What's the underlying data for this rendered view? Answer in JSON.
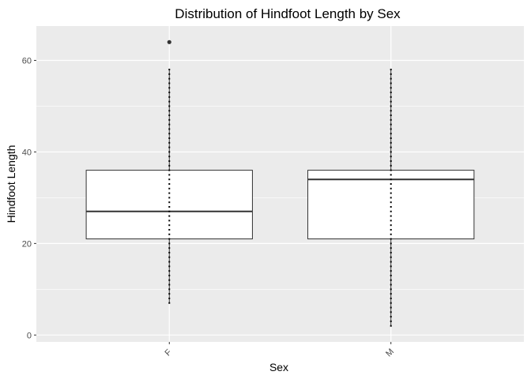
{
  "chart_data": {
    "type": "box",
    "title": "Distribution of Hindfoot Length by Sex",
    "xlabel": "Sex",
    "ylabel": "Hindfoot Length",
    "categories": [
      "F",
      "M"
    ],
    "ylim": [
      -1.5,
      67.5
    ],
    "yticks": [
      0,
      20,
      40,
      60
    ],
    "grid": true,
    "x_tick_rotation": -45,
    "series": [
      {
        "category": "F",
        "whisker_low": 7,
        "q1": 21,
        "median": 27,
        "q3": 36,
        "whisker_high": 58,
        "outliers": [
          64
        ]
      },
      {
        "category": "M",
        "whisker_low": 2,
        "q1": 21,
        "median": 34,
        "q3": 36,
        "whisker_high": 58,
        "outliers": []
      }
    ],
    "jitter_points": [
      {
        "category": "F",
        "range": [
          7,
          58
        ]
      },
      {
        "category": "M",
        "range": [
          2,
          58
        ]
      }
    ],
    "colors": {
      "panel": "#ebebeb",
      "grid_major": "#ffffff",
      "box_fill": "#ffffff",
      "box_stroke": "#333333",
      "points": "#000000"
    }
  }
}
